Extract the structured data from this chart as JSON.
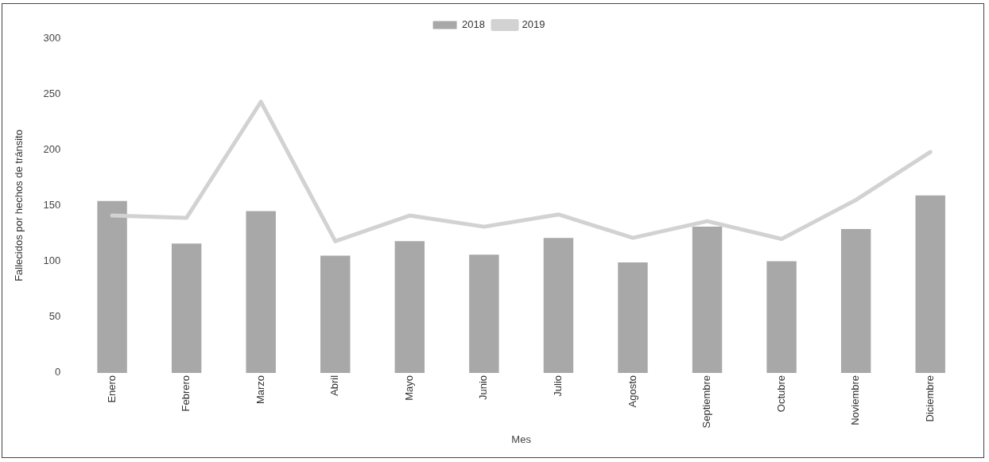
{
  "chart_data": {
    "type": "bar",
    "xlabel": "Mes",
    "ylabel": "Fallecidos por hechos de tránsito",
    "categories": [
      "Enero",
      "Febrero",
      "Marzo",
      "Abril",
      "Mayo",
      "Junio",
      "Julio",
      "Agosto",
      "Septiembre",
      "Octubre",
      "Noviembre",
      "Diciembre"
    ],
    "series": [
      {
        "name": "2018",
        "color": "#a8a8a8",
        "values": [
          154,
          116,
          145,
          105,
          118,
          106,
          121,
          99,
          131,
          100,
          129,
          159
        ]
      },
      {
        "name": "2019",
        "type": "line",
        "color": "#d2d2d2",
        "values": [
          141,
          139,
          243,
          118,
          141,
          131,
          142,
          121,
          136,
          120,
          155,
          198
        ]
      }
    ],
    "ylim": [
      0,
      300
    ],
    "yticks": [
      0,
      50,
      100,
      150,
      200,
      250,
      300
    ],
    "grid": false,
    "legend": "top",
    "marker": "none"
  }
}
